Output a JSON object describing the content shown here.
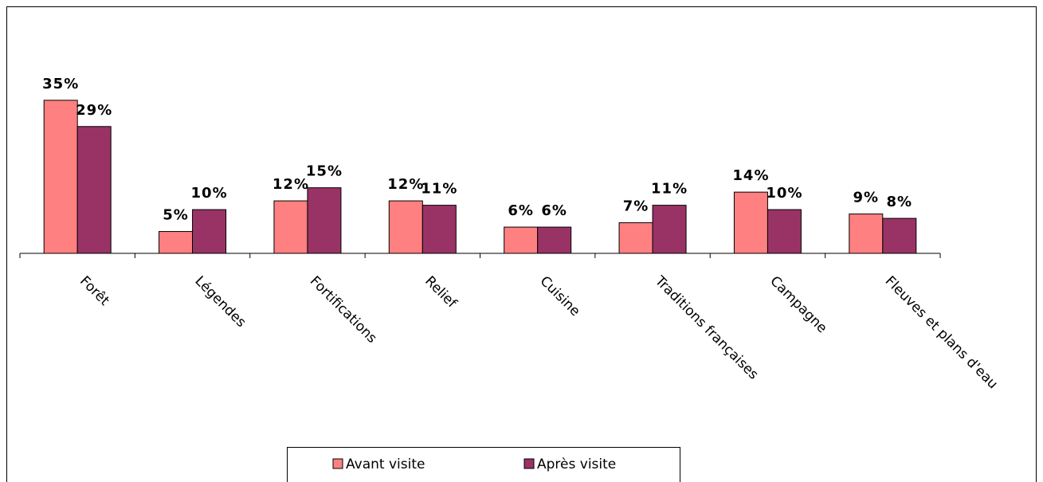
{
  "chart_data": {
    "type": "bar",
    "categories": [
      "Forêt",
      "Légendes",
      "Fortifications",
      "Relief",
      "Cuisine",
      "Traditions françaises",
      "Campagne",
      "Fleuves et plans d'eau"
    ],
    "series": [
      {
        "name": "Avant visite",
        "color": "#ff8080",
        "values": [
          35,
          5,
          12,
          12,
          6,
          7,
          14,
          9
        ],
        "value_labels": [
          "35%",
          "5%",
          "12%",
          "12%",
          "6%",
          "7%",
          "14%",
          "9%"
        ]
      },
      {
        "name": "Après visite",
        "color": "#993366",
        "values": [
          29,
          10,
          15,
          11,
          6,
          11,
          10,
          8
        ],
        "value_labels": [
          "29%",
          "10%",
          "15%",
          "11%",
          "6%",
          "11%",
          "10%",
          "8%"
        ]
      }
    ],
    "ylim": [
      0,
      40
    ],
    "grid": false,
    "legend": "bottom"
  }
}
